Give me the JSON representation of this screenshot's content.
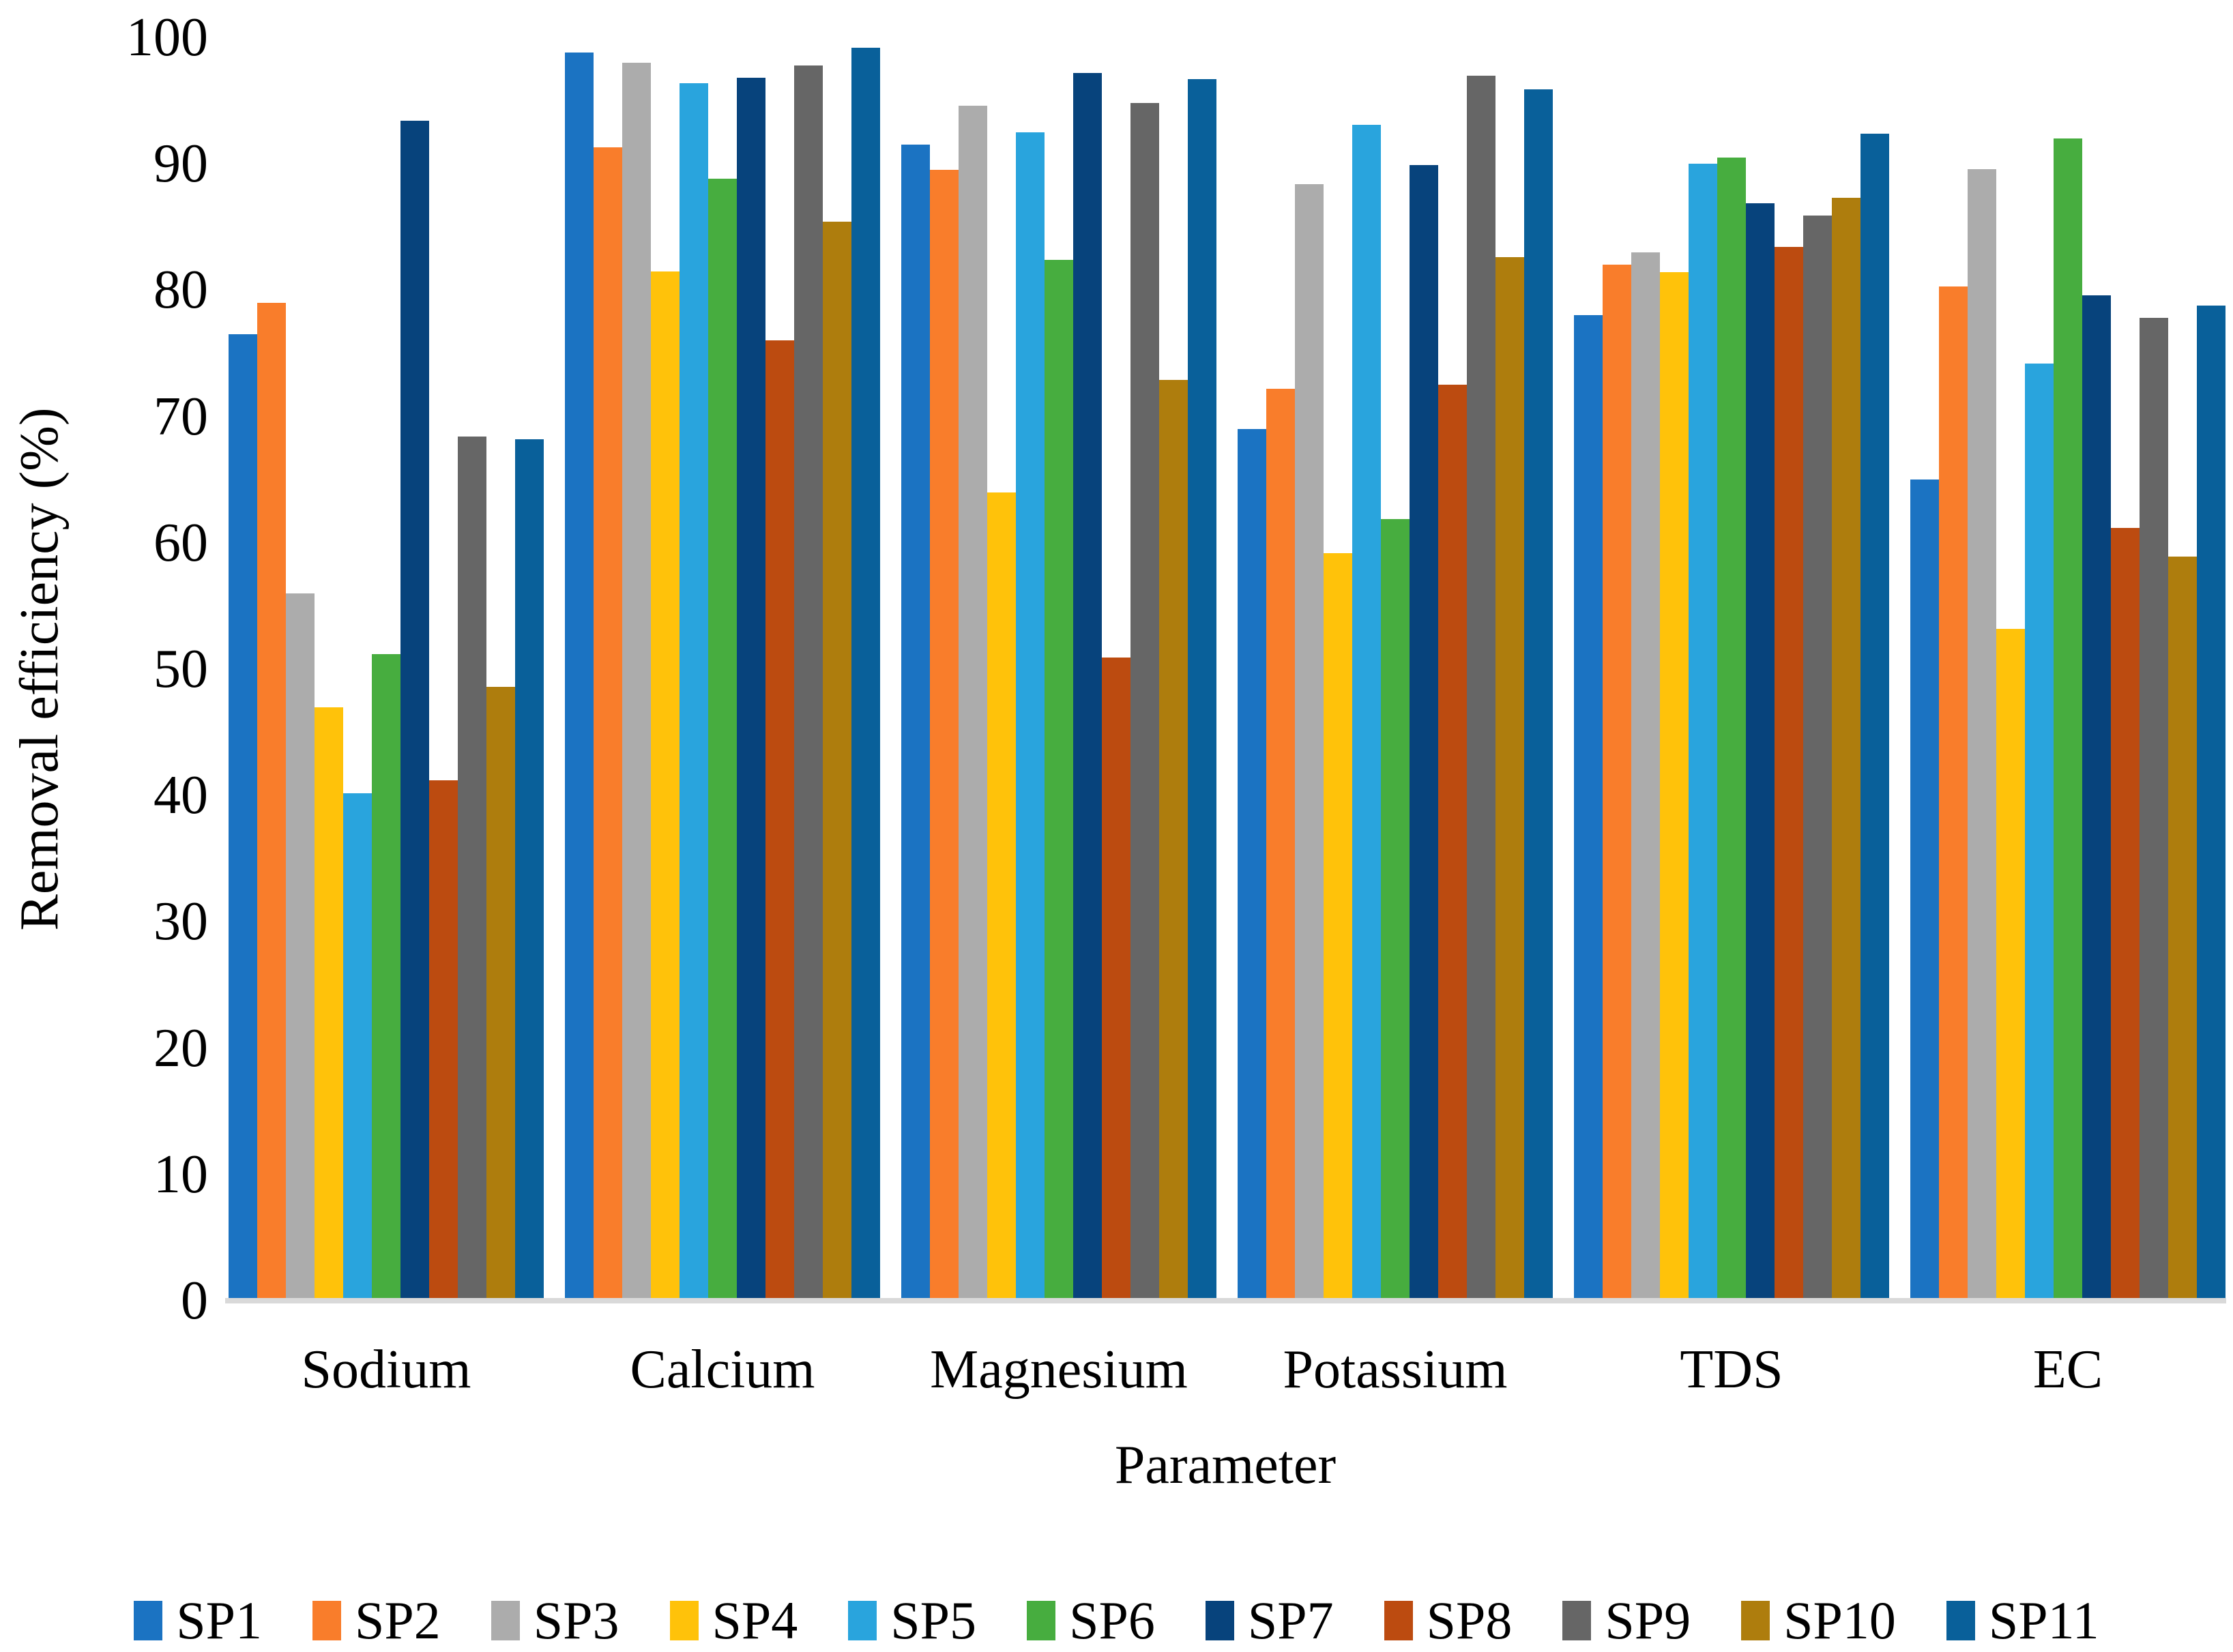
{
  "chart_data": {
    "type": "bar",
    "title": "",
    "xlabel": "Parameter",
    "ylabel": "Removal efficiency (%)",
    "ylim": [
      0,
      100
    ],
    "yticks": [
      0,
      10,
      20,
      30,
      40,
      50,
      60,
      70,
      80,
      90,
      100
    ],
    "grid": false,
    "legend_position": "bottom",
    "axis_line_color": "#d9d9d9",
    "categories": [
      "Sodium",
      "Calcium",
      "Magnesium",
      "Potassium",
      "TDS",
      "EC"
    ],
    "series": [
      {
        "name": "SP1",
        "color": "#1B73C2",
        "values": [
          76.5,
          98.8,
          91.5,
          69.0,
          78.0,
          65.0
        ]
      },
      {
        "name": "SP2",
        "color": "#F97D2B",
        "values": [
          79.0,
          91.3,
          89.5,
          72.2,
          82.0,
          80.3
        ]
      },
      {
        "name": "SP3",
        "color": "#ACACAC",
        "values": [
          56.0,
          98.0,
          94.6,
          88.4,
          83.0,
          89.6
        ]
      },
      {
        "name": "SP4",
        "color": "#FFC20A",
        "values": [
          47.0,
          81.5,
          64.0,
          59.2,
          81.4,
          53.2
        ]
      },
      {
        "name": "SP5",
        "color": "#29A4DD",
        "values": [
          40.2,
          96.4,
          92.5,
          93.1,
          90.0,
          74.2
        ]
      },
      {
        "name": "SP6",
        "color": "#47AD3F",
        "values": [
          51.2,
          88.8,
          82.4,
          61.9,
          90.5,
          92.0
        ]
      },
      {
        "name": "SP7",
        "color": "#07437C",
        "values": [
          93.4,
          96.8,
          97.2,
          89.9,
          86.9,
          79.6
        ]
      },
      {
        "name": "SP8",
        "color": "#BC4B10",
        "values": [
          41.2,
          76.0,
          50.9,
          72.5,
          83.4,
          61.2
        ]
      },
      {
        "name": "SP9",
        "color": "#666666",
        "values": [
          68.4,
          97.8,
          94.8,
          97.0,
          85.9,
          77.8
        ]
      },
      {
        "name": "SP10",
        "color": "#AE7D0D",
        "values": [
          48.6,
          85.4,
          72.9,
          82.6,
          87.3,
          58.9
        ]
      },
      {
        "name": "SP11",
        "color": "#09609A",
        "values": [
          68.2,
          99.2,
          96.7,
          95.9,
          92.4,
          78.8
        ]
      }
    ]
  }
}
